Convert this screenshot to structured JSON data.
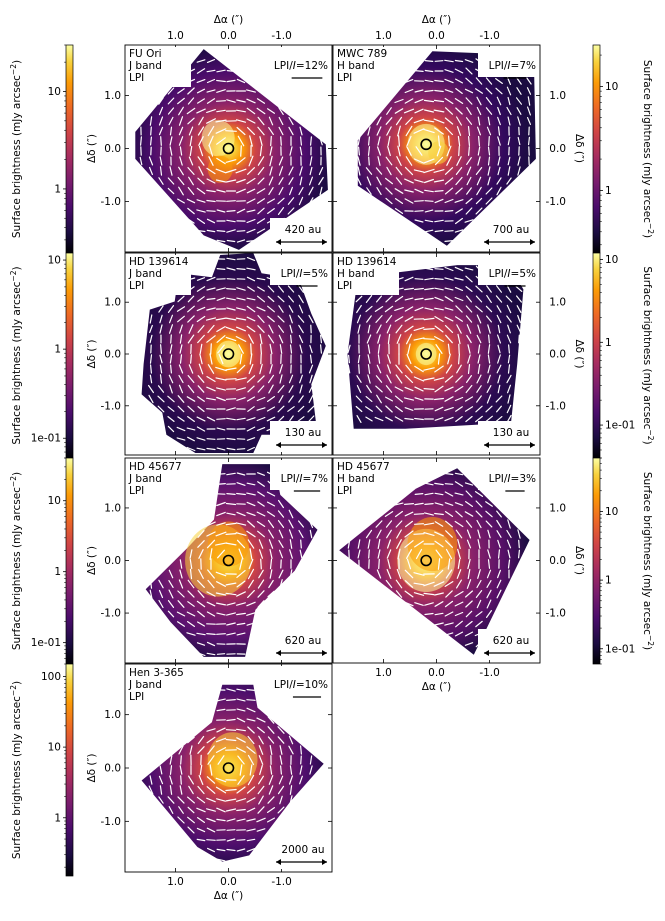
{
  "chart_data": {
    "type": "heatmap",
    "layout": "4x2 grid of polarized-intensity images (bottom-right cell empty)",
    "axes": {
      "xlabel": "Δα (″)",
      "ylabel": "Δδ (″)",
      "xticks": [
        1.0,
        0.0,
        -1.0
      ],
      "yticks": [
        1.0,
        0.0,
        -1.0
      ],
      "xtick_labels": [
        "1.0",
        "0.0",
        "-1.0"
      ],
      "ytick_labels": [
        "1.0",
        "0.0",
        "-1.0"
      ],
      "xlim": [
        1.95,
        -1.95
      ],
      "ylim": [
        -1.95,
        1.95
      ]
    },
    "colormap": "inferno",
    "colorbar_label": "Surface brightness (mJy arcsec$^{-2}$)",
    "colorbar_label_text": "Surface brightness (mJy arcsec",
    "colorbar_label_exp": "−2",
    "colorbar_label_close": ")",
    "colorbars": [
      {
        "id": "cb1",
        "side": "left",
        "ticks": [
          1,
          10
        ],
        "tick_labels": [
          "1",
          "10"
        ],
        "range": [
          0.22,
          30
        ]
      },
      {
        "id": "cb2",
        "side": "left",
        "ticks": [
          0.1,
          1,
          10
        ],
        "tick_labels": [
          "1e-01",
          "1",
          "10"
        ],
        "range": [
          0.06,
          12
        ]
      },
      {
        "id": "cb3",
        "side": "left",
        "ticks": [
          0.1,
          1,
          10
        ],
        "tick_labels": [
          "1e-01",
          "1",
          "10"
        ],
        "range": [
          0.05,
          40
        ]
      },
      {
        "id": "cb4",
        "side": "left",
        "ticks": [
          1,
          10,
          100
        ],
        "tick_labels": [
          "1",
          "10",
          "100"
        ],
        "range": [
          0.15,
          150
        ]
      },
      {
        "id": "cb5",
        "side": "right",
        "ticks": [
          1,
          10
        ],
        "tick_labels": [
          "1",
          "10"
        ],
        "range": [
          0.25,
          25
        ]
      },
      {
        "id": "cb6",
        "side": "right",
        "ticks": [
          0.1,
          1,
          10
        ],
        "tick_labels": [
          "1e-01",
          "1",
          "10"
        ],
        "range": [
          0.04,
          12
        ]
      },
      {
        "id": "cb7",
        "side": "right",
        "ticks": [
          0.1,
          1,
          10
        ],
        "tick_labels": [
          "1e-01",
          "1",
          "10"
        ],
        "range": [
          0.06,
          60
        ]
      }
    ],
    "vector_legend_prefix": "LPI/",
    "vector_legend_italic": "I",
    "panels": [
      {
        "id": "fu-ori-j",
        "target": "FU Ori",
        "band": "J band",
        "mode": "LPI",
        "lpi_label": "=12%",
        "scale_label": "420 au",
        "bar_frac": 0.72
      },
      {
        "id": "mwc789-h",
        "target": "MWC 789",
        "band": "H band",
        "mode": "LPI",
        "lpi_label": "=7%",
        "scale_label": "700 au",
        "bar_frac": 0.42
      },
      {
        "id": "hd139614-j",
        "target": "HD 139614",
        "band": "J band",
        "mode": "LPI",
        "lpi_label": "=5%",
        "scale_label": "130 au",
        "bar_frac": 0.35
      },
      {
        "id": "hd139614-h",
        "target": "HD 139614",
        "band": "H band",
        "mode": "LPI",
        "lpi_label": "=5%",
        "scale_label": "130 au",
        "bar_frac": 0.35
      },
      {
        "id": "hd45677-j",
        "target": "HD 45677",
        "band": "J band",
        "mode": "LPI",
        "lpi_label": "=7%",
        "scale_label": "620 au",
        "bar_frac": 0.55
      },
      {
        "id": "hd45677-h",
        "target": "HD 45677",
        "band": "H band",
        "mode": "LPI",
        "lpi_label": "=3%",
        "scale_label": "620 au",
        "bar_frac": 0.28
      },
      {
        "id": "hen3-365-j",
        "target": "Hen 3-365",
        "band": "J band",
        "mode": "LPI",
        "lpi_label": "=10%",
        "scale_label": "2000 au",
        "bar_frac": 0.62
      }
    ]
  }
}
